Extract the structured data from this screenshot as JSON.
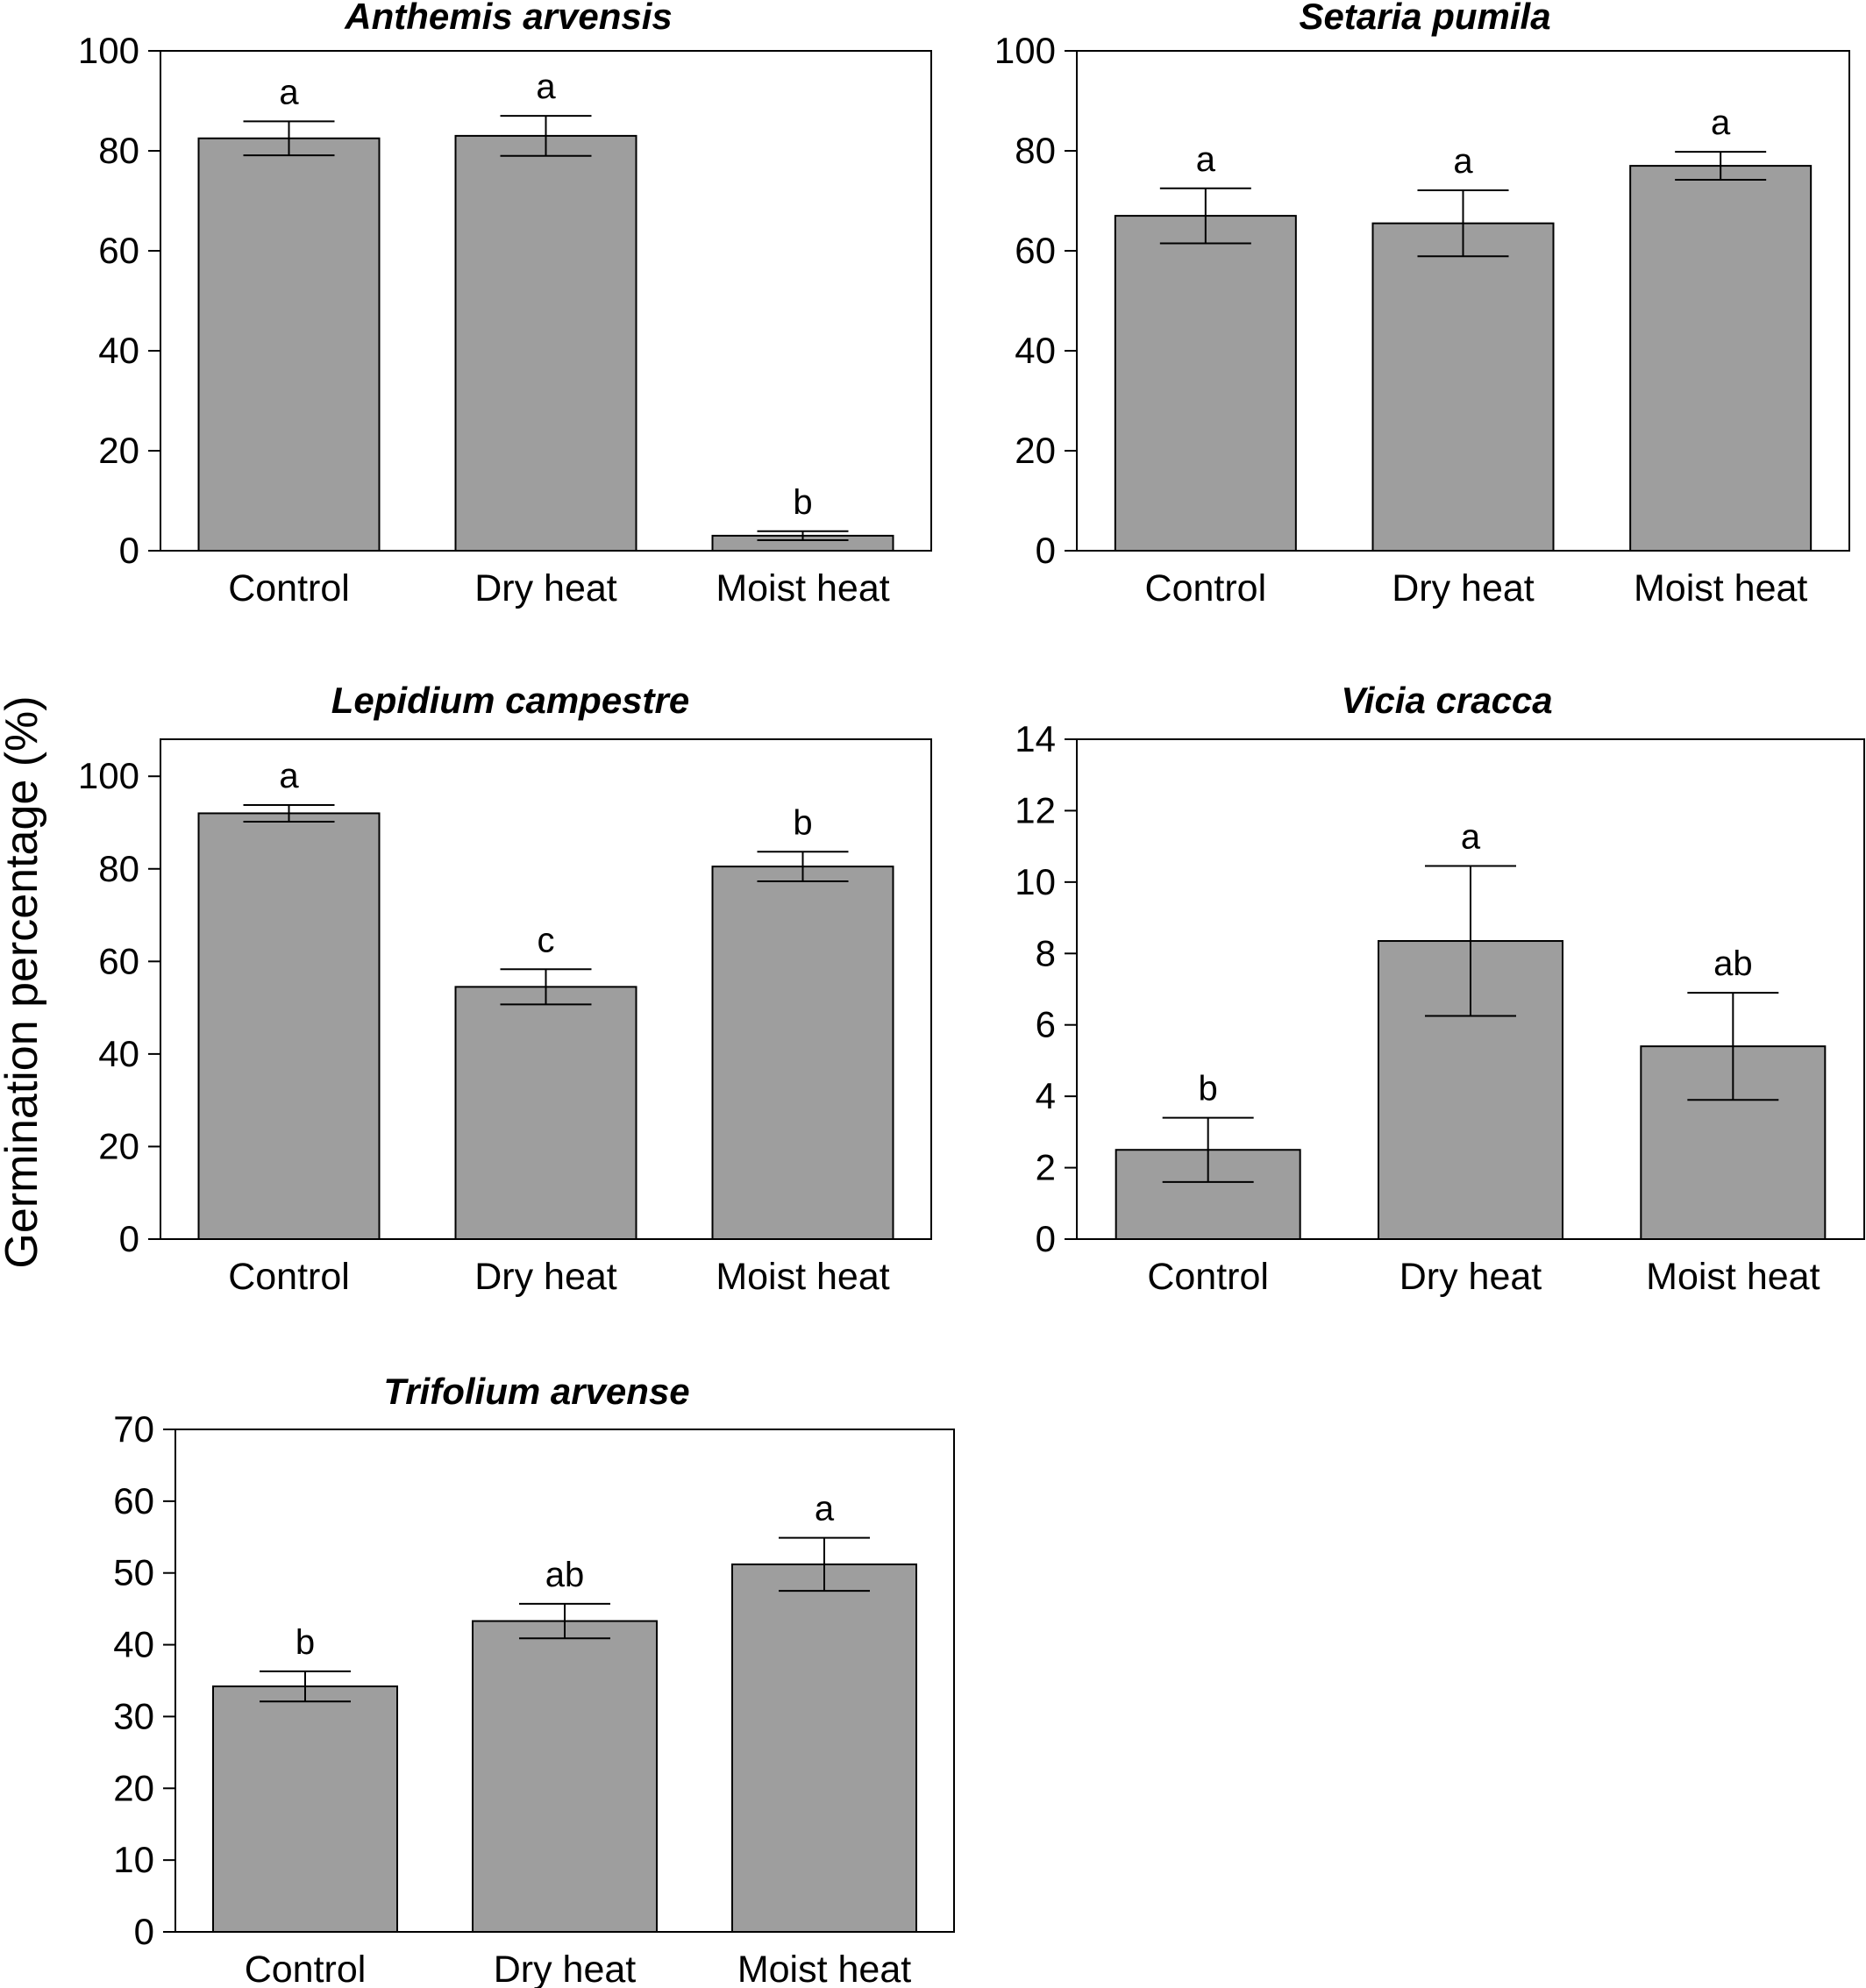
{
  "ylabel": "Germination percentage (%)",
  "colors": {
    "bar_fill": "#9e9e9e",
    "bar_stroke": "#000000",
    "axis": "#000000"
  },
  "chart_data": [
    {
      "type": "bar",
      "title": "Anthemis arvensis",
      "categories": [
        "Control",
        "Dry heat",
        "Moist heat"
      ],
      "values": [
        82.5,
        83,
        3
      ],
      "errors": [
        3.4,
        4,
        0.9
      ],
      "significance": [
        "a",
        "a",
        "b"
      ],
      "ylim": [
        0,
        100
      ],
      "yticks": [
        0,
        20,
        40,
        60,
        80,
        100
      ],
      "grid": false
    },
    {
      "type": "bar",
      "title": "Setaria pumila",
      "categories": [
        "Control",
        "Dry heat",
        "Moist heat"
      ],
      "values": [
        67,
        65.5,
        77
      ],
      "errors": [
        5.5,
        6.6,
        2.8
      ],
      "significance": [
        "a",
        "a",
        "a"
      ],
      "ylim": [
        0,
        100
      ],
      "yticks": [
        0,
        20,
        40,
        60,
        80,
        100
      ],
      "grid": false
    },
    {
      "type": "bar",
      "title": "Lepidium campestre",
      "categories": [
        "Control",
        "Dry heat",
        "Moist heat"
      ],
      "values": [
        92,
        54.5,
        80.5
      ],
      "errors": [
        1.8,
        3.8,
        3.2
      ],
      "significance": [
        "a",
        "c",
        "b"
      ],
      "ylim": [
        0,
        108
      ],
      "yticks": [
        0,
        20,
        40,
        60,
        80,
        100
      ],
      "grid": false
    },
    {
      "type": "bar",
      "title": "Vicia cracca",
      "categories": [
        "Control",
        "Dry heat",
        "Moist heat"
      ],
      "values": [
        2.5,
        8.35,
        5.4
      ],
      "errors": [
        0.9,
        2.1,
        1.5
      ],
      "significance": [
        "b",
        "a",
        "ab"
      ],
      "ylim": [
        0,
        14
      ],
      "yticks": [
        0,
        2,
        4,
        6,
        8,
        10,
        12,
        14
      ],
      "grid": false
    },
    {
      "type": "bar",
      "title": "Trifolium arvense",
      "categories": [
        "Control",
        "Dry heat",
        "Moist heat"
      ],
      "values": [
        34.2,
        43.3,
        51.2
      ],
      "errors": [
        2.1,
        2.4,
        3.7
      ],
      "significance": [
        "b",
        "ab",
        "a"
      ],
      "ylim": [
        0,
        70
      ],
      "yticks": [
        0,
        10,
        20,
        30,
        40,
        50,
        60,
        70
      ],
      "grid": false
    }
  ]
}
